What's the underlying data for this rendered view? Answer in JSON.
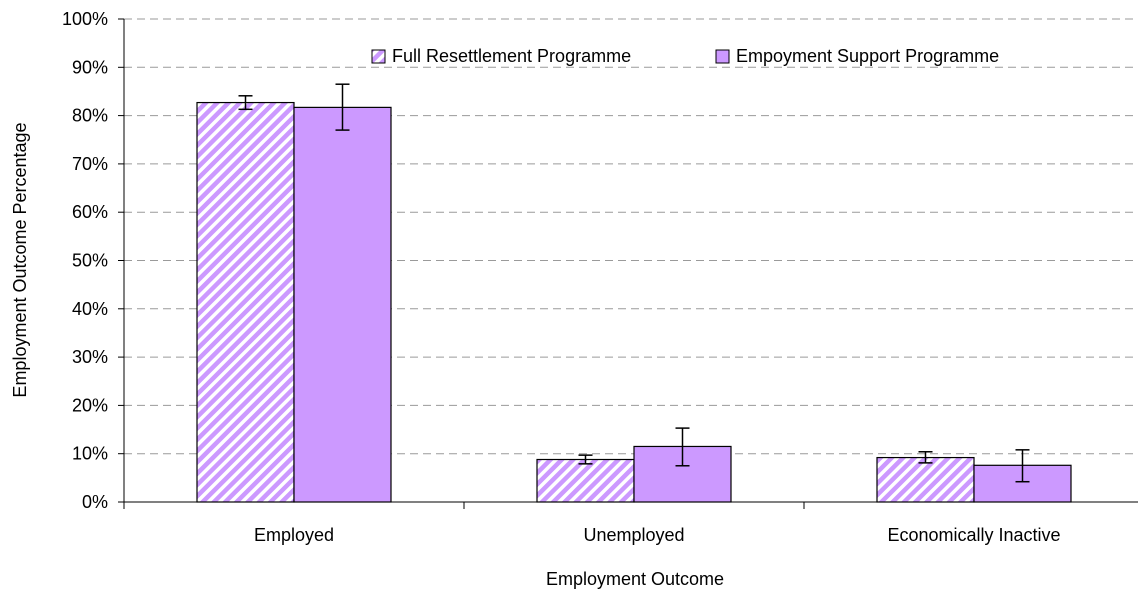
{
  "chart_data": {
    "type": "bar",
    "xlabel": "Employment Outcome",
    "ylabel": "Employment Outcome Percentage",
    "ylim": [
      0,
      100
    ],
    "yticks": [
      "0%",
      "10%",
      "20%",
      "30%",
      "40%",
      "50%",
      "60%",
      "70%",
      "80%",
      "90%",
      "100%"
    ],
    "grid": true,
    "legend_position": "top-right",
    "categories": [
      "Employed",
      "Unemployed",
      "Economically Inactive"
    ],
    "series": [
      {
        "name": "Full Resettlement Programme",
        "values": [
          82.7,
          8.8,
          9.2
        ],
        "error_low": [
          81.3,
          7.9,
          8.1
        ],
        "error_high": [
          84.1,
          9.7,
          10.4
        ],
        "color": "#cc99ff",
        "pattern": "diagonal-stripes"
      },
      {
        "name": "Empoyment Support Programme",
        "values": [
          81.7,
          11.5,
          7.6
        ],
        "error_low": [
          77.0,
          7.5,
          4.2
        ],
        "error_high": [
          86.5,
          15.3,
          10.8
        ],
        "color": "#cc99ff",
        "pattern": "solid"
      }
    ]
  }
}
